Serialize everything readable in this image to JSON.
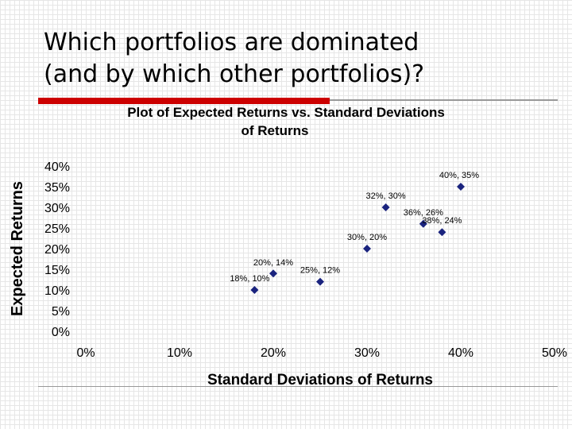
{
  "slide": {
    "title_lines": [
      "Which portfolios are dominated",
      "(and by which other portfolios)?"
    ]
  },
  "colors": {
    "accent_bar": "#cc0000",
    "marker": "#1a237e",
    "rule": "#999999"
  },
  "chart_data": {
    "type": "scatter",
    "title_lines": [
      "Plot of Expected Returns  vs. Standard Deviations",
      "of Returns"
    ],
    "xlabel": "Standard Deviations of Returns",
    "ylabel": "Expected Returns",
    "xlim": [
      0,
      50
    ],
    "ylim": [
      0,
      40
    ],
    "x_ticks": [
      {
        "value": 0,
        "label": "0%"
      },
      {
        "value": 10,
        "label": "10%"
      },
      {
        "value": 20,
        "label": "20%"
      },
      {
        "value": 30,
        "label": "30%"
      },
      {
        "value": 40,
        "label": "40%"
      },
      {
        "value": 50,
        "label": "50%"
      }
    ],
    "y_ticks": [
      {
        "value": 0,
        "label": "0%"
      },
      {
        "value": 5,
        "label": "5%"
      },
      {
        "value": 10,
        "label": "10%"
      },
      {
        "value": 15,
        "label": "15%"
      },
      {
        "value": 20,
        "label": "20%"
      },
      {
        "value": 25,
        "label": "25%"
      },
      {
        "value": 30,
        "label": "30%"
      },
      {
        "value": 35,
        "label": "35%"
      },
      {
        "value": 40,
        "label": "40%"
      }
    ],
    "grid": false,
    "marker": "diamond",
    "points": [
      {
        "x": 18,
        "y": 10,
        "label": "18%, 10%"
      },
      {
        "x": 20,
        "y": 14,
        "label": "20%, 14%"
      },
      {
        "x": 25,
        "y": 12,
        "label": "25%, 12%"
      },
      {
        "x": 30,
        "y": 20,
        "label": "30%, 20%"
      },
      {
        "x": 32,
        "y": 30,
        "label": "32%, 30%"
      },
      {
        "x": 36,
        "y": 26,
        "label": "36%, 26%"
      },
      {
        "x": 38,
        "y": 24,
        "label": "38%, 24%"
      },
      {
        "x": 40,
        "y": 35,
        "label": "40%, 35%"
      }
    ]
  }
}
